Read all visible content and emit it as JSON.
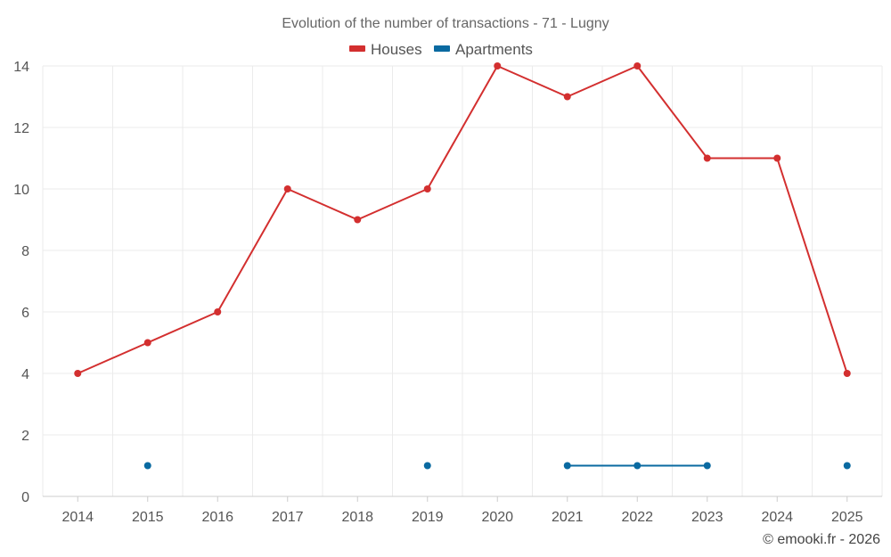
{
  "chart_data": {
    "type": "line",
    "title": "Evolution of the number of transactions - 71 - Lugny",
    "categories": [
      "2014",
      "2015",
      "2016",
      "2017",
      "2018",
      "2019",
      "2020",
      "2021",
      "2022",
      "2023",
      "2024",
      "2025"
    ],
    "ylim": [
      0,
      14
    ],
    "yticks": [
      0,
      2,
      4,
      6,
      8,
      10,
      12,
      14
    ],
    "grid": true,
    "legend_position": "top-center",
    "series": [
      {
        "name": "Houses",
        "color": "#d32f2f",
        "values": [
          4,
          5,
          6,
          10,
          9,
          10,
          14,
          13,
          14,
          11,
          11,
          4
        ]
      },
      {
        "name": "Apartments",
        "color": "#0a6aa1",
        "values": [
          null,
          1,
          null,
          null,
          null,
          1,
          null,
          1,
          1,
          1,
          null,
          1
        ]
      }
    ],
    "xlabel": "",
    "ylabel": ""
  },
  "credit": "© emooki.fr - 2026"
}
